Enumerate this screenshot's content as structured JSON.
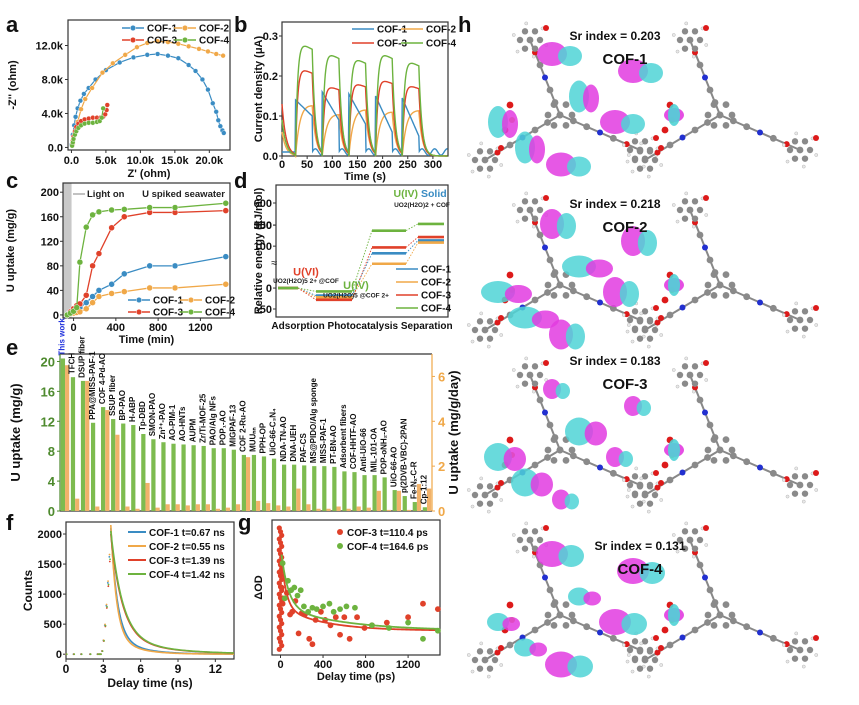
{
  "colors": {
    "COF-1": "#3a8cc3",
    "COF-2": "#f0a848",
    "COF-3": "#e0412a",
    "COF-4": "#6db33f",
    "green_bar": "#7dbb4f",
    "orange_bar": "#f1b26a",
    "green_axis": "#4e8a2e",
    "orange_axis": "#f0a848",
    "cyan_orbital": "#4fd3d6",
    "magenta_orbital": "#e23be0"
  },
  "panel_labels": [
    "a",
    "b",
    "c",
    "d",
    "e",
    "f",
    "g",
    "h"
  ],
  "chart_data": [
    {
      "id": "a",
      "type": "scatter",
      "xlabel": "Z' (ohm)",
      "ylabel": "-Z'' (ohm)",
      "xticks": [
        "0.0",
        "5.0k",
        "10.0k",
        "15.0k",
        "20.0k"
      ],
      "yticks": [
        "0.0",
        "4.0k",
        "8.0k",
        "12.0k"
      ],
      "xlim": [
        -500,
        23000
      ],
      "ylim": [
        -300,
        15000
      ],
      "legend": [
        "COF-1",
        "COF-2",
        "COF-3",
        "COF-4"
      ],
      "legend_position": "top-right",
      "series": [
        {
          "name": "COF-1",
          "x": [
            0,
            200,
            400,
            600,
            900,
            1300,
            1800,
            2500,
            3500,
            5000,
            7000,
            9000,
            11000,
            12500,
            14000,
            15500,
            17000,
            18000,
            19000,
            19800,
            20500,
            21000,
            21300,
            21600,
            21900,
            22100
          ],
          "y": [
            300,
            1500,
            2600,
            3600,
            4600,
            5500,
            6300,
            7000,
            8000,
            9100,
            10000,
            10600,
            10900,
            11000,
            10800,
            10500,
            9700,
            9000,
            8000,
            6800,
            5200,
            4200,
            3200,
            2500,
            2000,
            1700
          ]
        },
        {
          "name": "COF-2",
          "x": [
            200,
            500,
            900,
            1400,
            2000,
            3000,
            4500,
            6000,
            7800,
            9500,
            11000,
            12500,
            14000,
            15500,
            17000,
            18500,
            19800,
            21000,
            22000
          ],
          "y": [
            400,
            1700,
            3000,
            4500,
            5700,
            7000,
            8800,
            9900,
            10900,
            11800,
            12300,
            12500,
            12400,
            12200,
            11900,
            11600,
            11300,
            11000,
            10800
          ]
        },
        {
          "name": "COF-3",
          "x": [
            100,
            200,
            300,
            500,
            700,
            1000,
            1400,
            1900,
            2500,
            3100,
            3700,
            4200,
            4600,
            4900,
            5100,
            5200
          ],
          "y": [
            300,
            800,
            1300,
            1900,
            2400,
            2800,
            3100,
            3300,
            3400,
            3500,
            3500,
            3500,
            3600,
            3900,
            4400,
            5000
          ]
        },
        {
          "name": "COF-4",
          "x": [
            100,
            200,
            300,
            500,
            700,
            1000,
            1400,
            1900,
            2500,
            3100,
            3700,
            4100,
            4400,
            4600
          ],
          "y": [
            200,
            600,
            1000,
            1500,
            1900,
            2300,
            2600,
            2800,
            2900,
            2900,
            3000,
            3100,
            3500,
            4600
          ]
        }
      ]
    },
    {
      "id": "b",
      "type": "line",
      "xlabel": "Time (s)",
      "ylabel": "Current density (μA)",
      "xticks": [
        "0",
        "50",
        "100",
        "150",
        "200",
        "250",
        "300"
      ],
      "yticks": [
        "0.0",
        "0.1",
        "0.2",
        "0.3"
      ],
      "xlim": [
        0,
        330
      ],
      "ylim": [
        0,
        0.335
      ],
      "legend": [
        "COF-1",
        "COF-2",
        "COF-3",
        "COF-4"
      ],
      "legend_position": "top-right",
      "light_on_periods_s": [
        [
          27,
          60
        ],
        [
          80,
          113
        ],
        [
          133,
          166
        ],
        [
          186,
          219
        ],
        [
          239,
          272
        ]
      ],
      "series": [
        {
          "name": "COF-1",
          "plateau_start": [
            0.14,
            0.16,
            0.155,
            0.15,
            0.145
          ],
          "plateau_end": [
            0.1,
            0.09,
            0.08,
            0.06,
            0.05
          ]
        },
        {
          "name": "COF-2",
          "plateau_peak": [
            0.14,
            0.115,
            0.128,
            0.122,
            0.126
          ]
        },
        {
          "name": "COF-3",
          "plateau_peak": [
            0.225,
            0.18,
            0.188,
            0.197,
            0.183
          ]
        },
        {
          "name": "COF-4",
          "plateau_peak": [
            0.29,
            0.265,
            0.252,
            0.265,
            0.245
          ]
        }
      ]
    },
    {
      "id": "c",
      "type": "line",
      "xlabel": "Time (min)",
      "ylabel": "U uptake (mg/g)",
      "xticks": [
        "0",
        "400",
        "800",
        "1200"
      ],
      "yticks": [
        "0",
        "40",
        "80",
        "120",
        "160",
        "200"
      ],
      "xlim": [
        -100,
        1480
      ],
      "ylim": [
        -5,
        215
      ],
      "annotations": [
        "Light on",
        "U spiked seawater"
      ],
      "legend": [
        "COF-1",
        "COF-2",
        "COF-3",
        "COF-4"
      ],
      "legend_position": "bottom-right",
      "x": [
        -60,
        -30,
        0,
        30,
        60,
        120,
        180,
        240,
        360,
        480,
        720,
        960,
        1440
      ],
      "series": [
        {
          "name": "COF-1",
          "values": [
            0,
            3,
            6,
            9,
            12,
            20,
            30,
            40,
            50,
            67,
            80,
            80,
            95
          ]
        },
        {
          "name": "COF-2",
          "values": [
            0,
            2,
            3,
            4,
            5,
            10,
            20,
            30,
            35,
            38,
            44,
            44,
            50
          ]
        },
        {
          "name": "COF-3",
          "values": [
            0,
            5,
            10,
            15,
            18,
            32,
            80,
            100,
            142,
            160,
            167,
            167,
            170
          ]
        },
        {
          "name": "COF-4",
          "values": [
            0,
            3,
            6,
            12,
            86,
            143,
            163,
            168,
            171,
            172,
            175,
            175,
            182
          ]
        }
      ]
    },
    {
      "id": "d",
      "type": "line",
      "subtype": "energy-level-diagram",
      "xlabel": "Adsorption Photocatalysis Separation",
      "ylabel": "Relative energy (kJ/mol)",
      "yticks": [
        "-50",
        "0",
        "100",
        "150",
        "500",
        "600"
      ],
      "axis_break": true,
      "stages": [
        "Adsorption",
        "Photocatalysis",
        "Separation"
      ],
      "state_labels": [
        {
          "label": "U(VI)",
          "species": "UO2(H2O)5 2+ @COF",
          "color": "#e0412a"
        },
        {
          "label": "U(IV)",
          "species": "UO2(H2O)5 @COF 2+",
          "color": "#6db33f"
        },
        {
          "label": "U(IV) Solid",
          "species": "UO2(H2O)2 + COF",
          "color": "#6db33f"
        }
      ],
      "legend": [
        "COF-1",
        "COF-2",
        "COF-3",
        "COF-4"
      ],
      "legend_position": "bottom-right",
      "series": [
        {
          "name": "COF-1",
          "values": [
            0,
            -18,
            83,
            430
          ]
        },
        {
          "name": "COF-2",
          "values": [
            0,
            -22,
            58,
            420
          ]
        },
        {
          "name": "COF-3",
          "values": [
            0,
            -28,
            97,
            445
          ]
        },
        {
          "name": "COF-4",
          "values": [
            0,
            -8,
            137,
            505
          ]
        }
      ]
    },
    {
      "id": "e",
      "type": "bar",
      "ylabel": "U uptake (mg/g)",
      "y2label": "U uptake (mg/g/day)",
      "yticks": [
        "0",
        "4",
        "8",
        "12",
        "16",
        "20"
      ],
      "y2ticks": [
        "0",
        "2",
        "4",
        "6"
      ],
      "ylim": [
        0,
        21
      ],
      "y2lim": [
        0,
        7
      ],
      "highlight_label": "This work",
      "categories": [
        "This work",
        "TFCH",
        "DSUP fiber",
        "PPA@MISS-PAF-1",
        "COF 4-Pd-AO",
        "SSUP fiber",
        "BP-PAO",
        "H-ABP",
        "Tp-DBD",
        "SMON-PAO",
        "Zn²⁺-PAO",
        "AO-PIM-1",
        "AO-HNTs",
        "AUPM",
        "Zr/Ti-MOF-25",
        "PAO/Alg NFs",
        "POP₁-AO",
        "MIGPAF-13",
        "COF 2-Ru-AO",
        "MUUₙₙ",
        "PPH-OP",
        "UiO-66-C₃N₄",
        "NDA-TN-AO",
        "DNA-UEH",
        "PAF-CS",
        "MS@PIDO/Alg sponge",
        "MISS-PAF-1",
        "PT-BN-AO",
        "Adsorbent fibers",
        "COF-HHTF-AO",
        "Anti-UiO-66",
        "MIL-101-OA",
        "POP-oNH₂-AO",
        "UiO-66-AO",
        "p(2DVB-VBC)-2PAN",
        "Fe-Nₓ-C-R",
        "Cp-1:12"
      ],
      "series": [
        {
          "name": "U uptake (mg/g)",
          "axis": "left",
          "values": [
            20.4,
            17.9,
            17.4,
            11.8,
            13.9,
            12.3,
            11.7,
            11.5,
            10.3,
            9.6,
            9.2,
            9.0,
            8.9,
            8.8,
            8.7,
            8.4,
            8.4,
            8.2,
            7.5,
            7.5,
            7.3,
            7.0,
            6.2,
            6.2,
            6.1,
            6.0,
            6.0,
            5.9,
            5.3,
            5.2,
            4.8,
            4.8,
            4.5,
            2.8,
            2.0,
            1.2,
            0.5
          ]
        },
        {
          "name": "U uptake (mg/g/day)",
          "axis": "right",
          "values": [
            6.5,
            0.55,
            5.8,
            0.2,
            4.5,
            3.4,
            0.2,
            0.1,
            1.25,
            0.15,
            0.3,
            0.3,
            0.25,
            0.3,
            0.3,
            0.1,
            0.15,
            0.3,
            2.4,
            0.45,
            0.35,
            0.25,
            0.2,
            1.0,
            0.3,
            0.1,
            0.1,
            0.2,
            0.1,
            0.2,
            0.15,
            0.9,
            0.05,
            0.9,
            0.05,
            1.2,
            1.0
          ]
        }
      ]
    },
    {
      "id": "f",
      "type": "line",
      "xlabel": "Delay time (ns)",
      "ylabel": "Counts",
      "xticks": [
        "0",
        "3",
        "6",
        "9",
        "12"
      ],
      "yticks": [
        "0",
        "500",
        "1000",
        "1500",
        "2000"
      ],
      "xlim": [
        0,
        13.5
      ],
      "ylim": [
        -80,
        2200
      ],
      "legend_position": "top-right",
      "series": [
        {
          "name": "COF-1",
          "tavg_ns": 0.67,
          "label": "COF-1  t_avg=0.67 ns",
          "peak": 2100
        },
        {
          "name": "COF-2",
          "tavg_ns": 0.55,
          "label": "COF-2  t_avg=0.55 ns",
          "peak": 2150
        },
        {
          "name": "COF-3",
          "tavg_ns": 1.39,
          "label": "COF-3  t_avg=1.39 ns",
          "peak": 2000
        },
        {
          "name": "COF-4",
          "tavg_ns": 1.42,
          "label": "COF-4  t_avg=1.42 ns",
          "peak": 2050
        }
      ]
    },
    {
      "id": "g",
      "type": "scatter",
      "xlabel": "Delay time (ps)",
      "ylabel": "ΔOD",
      "xticks": [
        "0",
        "400",
        "800",
        "1200"
      ],
      "xlim": [
        -80,
        1500
      ],
      "ylim": [
        0,
        1
      ],
      "legend_position": "top-right",
      "series": [
        {
          "name": "COF-3",
          "tavg_ps": 110.4,
          "label": "COF-3 t_avg=110.4 ps",
          "x": [
            5,
            10,
            15,
            20,
            60,
            90,
            110,
            140,
            170,
            200,
            230,
            270,
            300,
            330,
            380,
            420,
            470,
            520,
            560,
            600,
            650,
            720,
            790,
            860,
            1000,
            1200,
            1340,
            1480
          ],
          "y": [
            0.62,
            0.5,
            0.42,
            0.38,
            0.46,
            0.3,
            0.32,
            0.4,
            0.16,
            0.31,
            0.3,
            0.12,
            0.08,
            0.26,
            0.32,
            0.26,
            0.22,
            0.28,
            0.15,
            0.28,
            0.12,
            0.28,
            0.2,
            0.22,
            0.24,
            0.28,
            0.38,
            0.34
          ]
        },
        {
          "name": "COF-4",
          "tavg_ps": 164.6,
          "label": "COF-4 t_avg=164.6 ps",
          "x": [
            20,
            40,
            70,
            100,
            130,
            160,
            190,
            220,
            260,
            300,
            340,
            400,
            460,
            500,
            560,
            620,
            700,
            860,
            1020,
            1200,
            1340,
            1480
          ],
          "y": [
            0.68,
            0.42,
            0.55,
            0.48,
            0.5,
            0.44,
            0.48,
            0.36,
            0.32,
            0.35,
            0.34,
            0.36,
            0.38,
            0.32,
            0.34,
            0.36,
            0.35,
            0.22,
            0.2,
            0.24,
            0.12,
            0.18
          ]
        }
      ]
    }
  ],
  "panel_h": {
    "rows": [
      {
        "sr_index_label": "Sr index = 0.203",
        "cof": "COF-1"
      },
      {
        "sr_index_label": "Sr index = 0.218",
        "cof": "COF-2"
      },
      {
        "sr_index_label": "Sr index = 0.183",
        "cof": "COF-3"
      },
      {
        "sr_index_label": "Sr index = 0.131",
        "cof": "COF-4"
      }
    ]
  }
}
